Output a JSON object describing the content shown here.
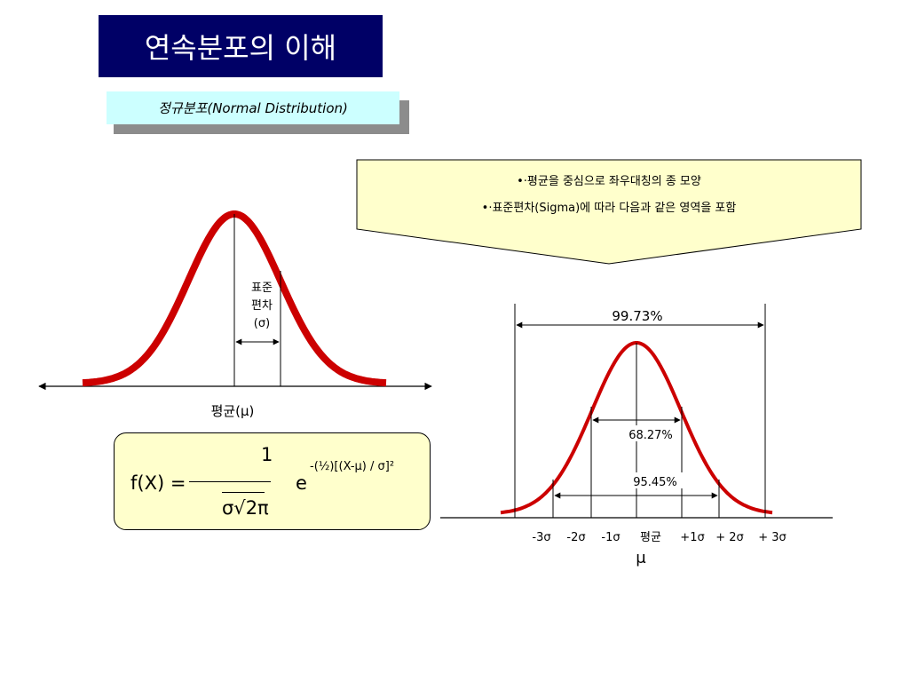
{
  "title": "연속분포의 이해",
  "subtitle": "정규분포(Normal Distribution)",
  "callout": {
    "line1": "•·평균을 중심으로 좌우대칭의 종 모양",
    "line2": "•·표준편차(Sigma)에 따라 다음과 같은 영역을 포함"
  },
  "left_diagram": {
    "std_label_line1": "표준",
    "std_label_line2": "편차",
    "std_label_line3": "(σ)",
    "mean_label": "평균(μ)"
  },
  "formula": {
    "lhs": "f(X) =",
    "numerator": "1",
    "denominator": "σ√2π",
    "base": "e",
    "exponent": "-(½)[(X-μ) / σ]²"
  },
  "right_diagram": {
    "pct_99": "99.73%",
    "pct_68": "68.27%",
    "pct_95": "95.45%",
    "axis_labels": [
      "-3σ",
      "-2σ",
      "-1σ",
      "평균",
      "+1σ",
      "+ 2σ",
      "+ 3σ"
    ],
    "mu_label": "μ"
  },
  "colors": {
    "title_bg": "#000066",
    "subtitle_bg": "#ccffff",
    "callout_bg": "#ffffcc",
    "curve": "#cc0000"
  }
}
